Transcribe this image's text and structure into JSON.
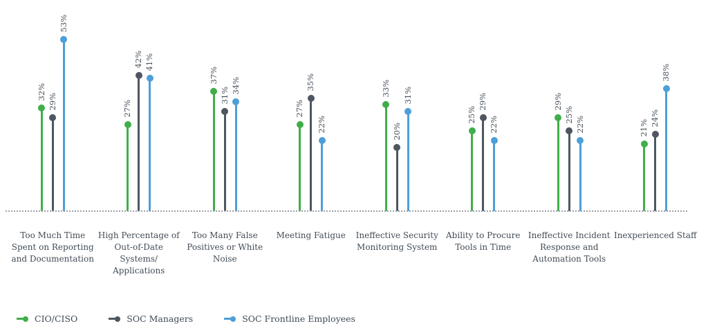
{
  "chart_data": {
    "type": "lollipop",
    "title": "",
    "categories": [
      "Too Much Time Spent on Reporting and Documentation",
      "High Percentage of Out-of-Date Systems/ Applications",
      "Too Many False Positives or White Noise",
      "Meeting Fatigue",
      "Ineffective Security Monitoring System",
      "Ability to Procure Tools in Time",
      "Ineffective Incident Response and Automation Tools",
      "Inexperienced Staff"
    ],
    "series": [
      {
        "name": "CIO/CISO",
        "color": "#3fae4a",
        "values": [
          32,
          27,
          37,
          27,
          33,
          25,
          29,
          21
        ]
      },
      {
        "name": "SOC Managers",
        "color": "#4d5661",
        "values": [
          29,
          42,
          31,
          35,
          20,
          29,
          25,
          24
        ]
      },
      {
        "name": "SOC Frontline Employees",
        "color": "#4c9fd8",
        "values": [
          53,
          41,
          34,
          22,
          31,
          22,
          22,
          38
        ]
      }
    ],
    "value_suffix": "%",
    "ylim": [
      0,
      57
    ],
    "grid": "off",
    "baseline_style": "dotted",
    "legend_position": "bottom-left",
    "value_label_rotation": -90,
    "colors": {
      "value_label": "#47515c",
      "category_label": "#424c57",
      "baseline": "#9aa1a8"
    }
  }
}
